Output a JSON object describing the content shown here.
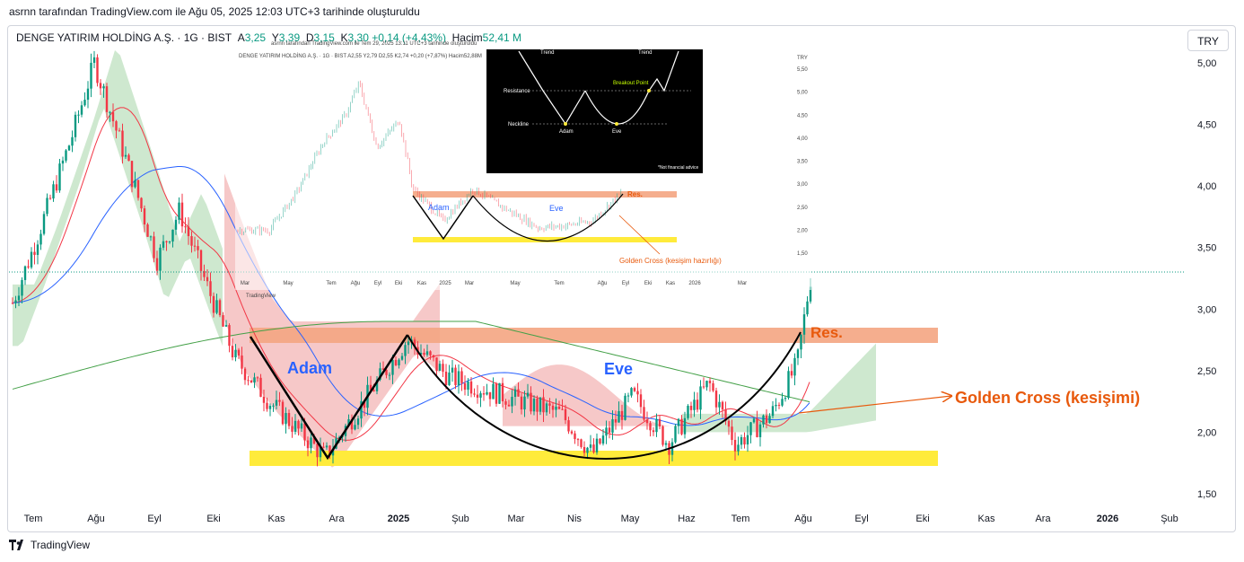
{
  "caption": "asrnn tarafından TradingView.com ile Ağu 05, 2025 12:03 UTC+3 tarihinde oluşturuldu",
  "legend": {
    "symbol": "DENGE YATIRIM HOLDİNG A.Ş. · 1G · BIST",
    "o_label": "A",
    "o_value": "3,25",
    "h_label": "Y",
    "h_value": "3,39",
    "l_label": "D",
    "l_value": "3,15",
    "c_label": "K",
    "c_value": "3,30",
    "change": "+0,14 (+4,43%)",
    "vol_label": "Hacim",
    "vol_value": "52,41 M"
  },
  "currency_button": "TRY",
  "brand": "TradingView",
  "colors": {
    "up": "#089981",
    "down": "#f23645",
    "resistance": "#f4a582",
    "support": "#ffeb3b",
    "annotation_orange": "#e8590c",
    "annotation_blue": "#2962ff",
    "ma_red": "#f23645",
    "ma_blue": "#2962ff",
    "ma_green": "#43a047",
    "cloud_green": "#a5d6a7",
    "cloud_red": "#ef9a9a"
  },
  "annotations": {
    "adam": "Adam",
    "eve": "Eve",
    "res": "Res.",
    "golden_cross": "Golden Cross (kesişimi)"
  },
  "inset_chart": {
    "legend": "DENGE YATIRIM HOLDİNG A.Ş. · 1G · BIST  A2,55 Y2,79 D2,55 K2,74 +0,20 (+7,87%) Hacim52,88M",
    "caption": "asrnn tarafından TradingView.com ile Tem 29, 2025 13:11 UTC+3 tarihinde oluşturuldu",
    "currency": "TRY",
    "y_ticks": [
      "5,50",
      "5,00",
      "4,50",
      "4,00",
      "3,50",
      "3,00",
      "2,50",
      "2,00",
      "1,50"
    ],
    "x_ticks": [
      "Mar",
      "May",
      "Tem",
      "Ağu",
      "Eyl",
      "Eki",
      "Kas",
      "2025",
      "Mar",
      "May",
      "Tem",
      "Ağu",
      "Eyl",
      "Eki",
      "Kas",
      "2026",
      "Mar"
    ],
    "adam": "Adam",
    "eve": "Eve",
    "res": "Res.",
    "golden_cross": "Golden Cross (kesişim hazırlığı)",
    "brand": "TradingView"
  },
  "pattern_diagram": {
    "trend_left": "Trend",
    "trend_right": "Trend",
    "resistance": "Resistance",
    "breakout": "Breakout Point",
    "neckline": "Neckline",
    "adam": "Adam",
    "eve": "Eve",
    "disclaimer": "*Not financial advice"
  },
  "chart_data": {
    "type": "candlestick",
    "title": "DENGE YATIRIM HOLDİNG A.Ş. · 1G · BIST",
    "y_axis": {
      "ticks": [
        "5,00",
        "4,50",
        "4,00",
        "3,50",
        "3,00",
        "2,50",
        "2,00",
        "1,50"
      ],
      "range": [
        1.5,
        5.0
      ],
      "currency": "TRY"
    },
    "x_axis": {
      "ticks": [
        "Tem",
        "Ağu",
        "Eyl",
        "Eki",
        "Kas",
        "Ara",
        "2025",
        "Şub",
        "Mar",
        "Nis",
        "May",
        "Haz",
        "Tem",
        "Ağu",
        "Eyl",
        "Eki",
        "Kas",
        "Ara",
        "2026",
        "Şub"
      ]
    },
    "last_close": 3.3,
    "resistance_zone": [
      2.73,
      2.85
    ],
    "support_zone": [
      1.72,
      1.84
    ],
    "price_path": [
      {
        "date": "2024-07",
        "price": 3.05
      },
      {
        "date": "2024-07-mid",
        "price": 3.55
      },
      {
        "date": "2024-08",
        "price": 4.4
      },
      {
        "date": "2024-08-mid",
        "price": 5.0
      },
      {
        "date": "2024-09",
        "price": 4.0
      },
      {
        "date": "2024-09-mid",
        "price": 3.4
      },
      {
        "date": "2024-10",
        "price": 3.8
      },
      {
        "date": "2024-10-mid",
        "price": 3.2
      },
      {
        "date": "2024-10-end",
        "price": 2.6
      },
      {
        "date": "2024-11",
        "price": 2.25
      },
      {
        "date": "2024-11-end",
        "price": 1.8
      },
      {
        "date": "2024-12",
        "price": 2.3
      },
      {
        "date": "2025-01",
        "price": 2.75
      },
      {
        "date": "2025-01-mid",
        "price": 2.45
      },
      {
        "date": "2025-02",
        "price": 2.3
      },
      {
        "date": "2025-03",
        "price": 2.15
      },
      {
        "date": "2025-04",
        "price": 1.82
      },
      {
        "date": "2025-04-mid",
        "price": 2.3
      },
      {
        "date": "2025-05",
        "price": 1.9
      },
      {
        "date": "2025-06",
        "price": 2.4
      },
      {
        "date": "2025-06-mid",
        "price": 1.9
      },
      {
        "date": "2025-07",
        "price": 2.15
      },
      {
        "date": "2025-07-end",
        "price": 2.55
      },
      {
        "date": "2025-08",
        "price": 3.3
      }
    ],
    "annotations": [
      "Adam",
      "Eve",
      "Res.",
      "Golden Cross (kesişimi)"
    ]
  }
}
